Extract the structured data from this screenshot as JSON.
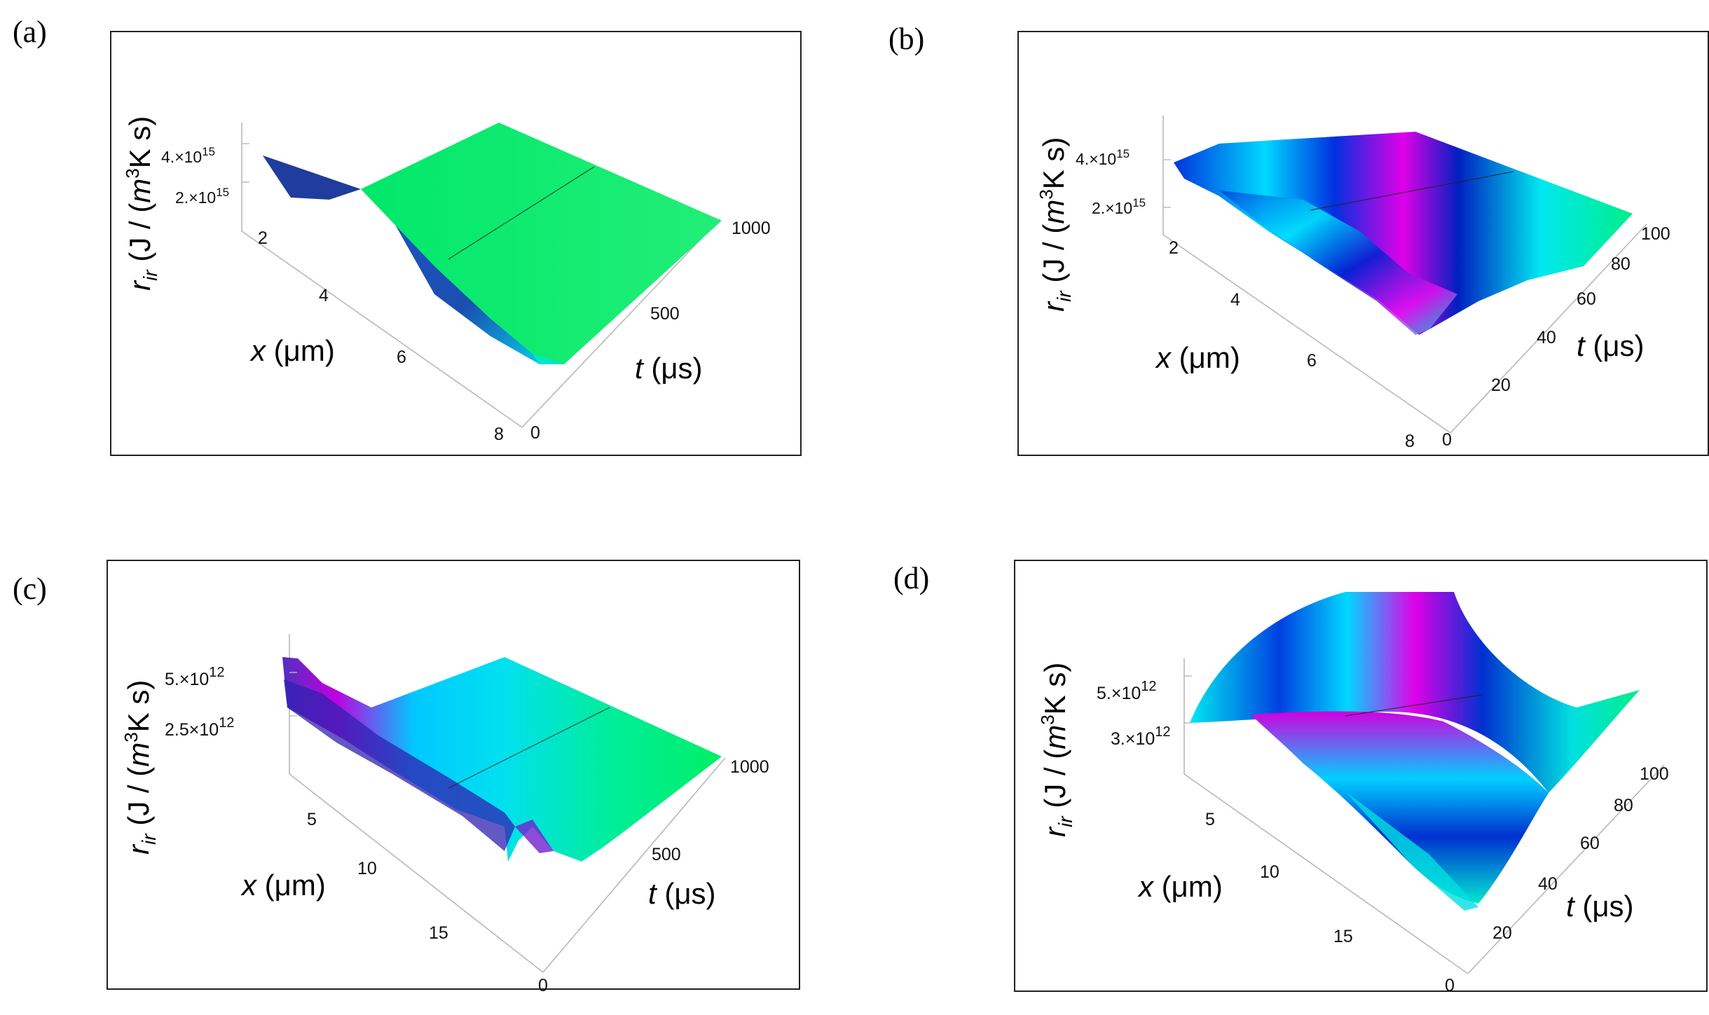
{
  "panels": [
    {
      "letter": "(a)",
      "chart_data": {
        "type": "surface3d",
        "x_axis": {
          "label": "x",
          "unit": "(μm)",
          "ticks": [
            "2",
            "4",
            "6",
            "8"
          ],
          "range": [
            1.5,
            8
          ]
        },
        "t_axis": {
          "label": "t",
          "unit": "(μs)",
          "ticks": [
            "0",
            "500",
            "1000"
          ],
          "range": [
            0,
            1000
          ]
        },
        "z_axis": {
          "label": "r",
          "label_sub": "ir",
          "unit_pre": " (J / (",
          "unit_m": "m",
          "unit_sup": "3",
          "unit_post": "K s)",
          "ticks": [
            {
              "mant": "2.",
              "exp": "15",
              "value": 2000000000000000.0
            },
            {
              "mant": "4.",
              "exp": "15",
              "value": 4000000000000000.0
            }
          ]
        },
        "colors": [
          "#00ee66",
          "#00ffee",
          "#0033ee",
          "#ee00ee"
        ],
        "note": "surface high at small x, dropping to near zero at large x; nearly constant in t"
      }
    },
    {
      "letter": "(b)",
      "chart_data": {
        "type": "surface3d",
        "x_axis": {
          "label": "x",
          "unit": "(μm)",
          "ticks": [
            "2",
            "4",
            "6",
            "8"
          ],
          "range": [
            1.5,
            8
          ]
        },
        "t_axis": {
          "label": "t",
          "unit": "(μs)",
          "ticks": [
            "0",
            "20",
            "40",
            "60",
            "80",
            "100"
          ],
          "range": [
            0,
            100
          ]
        },
        "z_axis": {
          "label": "r",
          "label_sub": "ir",
          "unit_pre": " (J / (",
          "unit_m": "m",
          "unit_sup": "3",
          "unit_post": "K s)",
          "ticks": [
            {
              "mant": "2.",
              "exp": "15",
              "value": 2000000000000000.0
            },
            {
              "mant": "4.",
              "exp": "15",
              "value": 4000000000000000.0
            }
          ]
        },
        "colors": [
          "#00ee66",
          "#00ffee",
          "#0033ee",
          "#ee00ee"
        ]
      }
    },
    {
      "letter": "(c)",
      "chart_data": {
        "type": "surface3d",
        "x_axis": {
          "label": "x",
          "unit": "(μm)",
          "ticks": [
            "5",
            "10",
            "15"
          ],
          "range": [
            1,
            18
          ]
        },
        "t_axis": {
          "label": "t",
          "unit": "(μs)",
          "ticks": [
            "0",
            "500",
            "1000"
          ],
          "range": [
            0,
            1000
          ]
        },
        "z_axis": {
          "label": "r",
          "label_sub": "ir",
          "unit_pre": " (J / (",
          "unit_m": "m",
          "unit_sup": "3",
          "unit_post": "K s)",
          "ticks": [
            {
              "mant": "2.5",
              "exp": "12",
              "value": 2500000000000.0
            },
            {
              "mant": "5.",
              "exp": "12",
              "value": 5000000000000.0
            }
          ]
        },
        "colors": [
          "#00ee66",
          "#00ffee",
          "#0033ee",
          "#ee00ee"
        ]
      }
    },
    {
      "letter": "(d)",
      "chart_data": {
        "type": "surface3d",
        "x_axis": {
          "label": "x",
          "unit": "(μm)",
          "ticks": [
            "5",
            "10",
            "15"
          ],
          "range": [
            1,
            18
          ]
        },
        "t_axis": {
          "label": "t",
          "unit": "(μs)",
          "ticks": [
            "0",
            "20",
            "40",
            "60",
            "80",
            "100"
          ],
          "range": [
            0,
            100
          ]
        },
        "z_axis": {
          "label": "r",
          "label_sub": "ir",
          "unit_pre": " (J / (",
          "unit_m": "m",
          "unit_sup": "3",
          "unit_post": "K s)",
          "ticks": [
            {
              "mant": "3.",
              "exp": "12",
              "value": 3000000000000.0
            },
            {
              "mant": "5.",
              "exp": "12",
              "value": 5000000000000.0
            }
          ]
        },
        "colors": [
          "#00ee66",
          "#00ffee",
          "#0033ee",
          "#ee00ee"
        ]
      }
    }
  ]
}
